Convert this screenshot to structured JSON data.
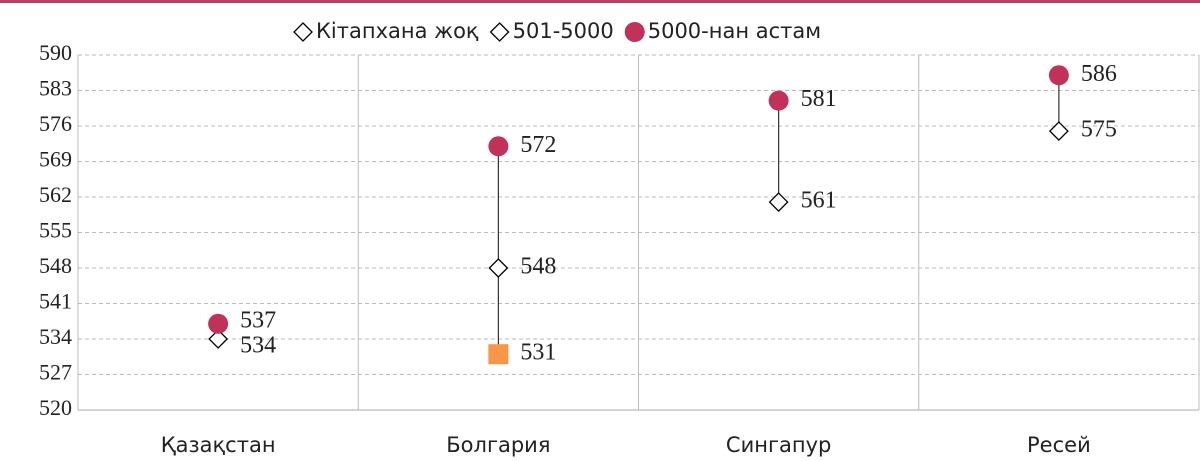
{
  "chart_data": {
    "type": "dot",
    "categories": [
      "Қазақстан",
      "Болгария",
      "Сингапур",
      "Ресей"
    ],
    "series": [
      {
        "name": "Кітапхана жоқ",
        "color": "#f79646",
        "marker": "square",
        "legend_marker": "diamond",
        "values": [
          null,
          531,
          null,
          null
        ]
      },
      {
        "name": "501-5000",
        "color": "#ffffff",
        "marker": "diamond",
        "values": [
          534,
          548,
          561,
          575
        ]
      },
      {
        "name": "5000-нан астам",
        "color": "#c0325a",
        "marker": "circle",
        "values": [
          537,
          572,
          581,
          586
        ]
      }
    ],
    "ylim": [
      520,
      590
    ],
    "yticks": [
      520,
      527,
      534,
      541,
      548,
      555,
      562,
      569,
      576,
      583,
      590
    ],
    "grid": true,
    "high_low_lines": true,
    "legend": "top"
  }
}
